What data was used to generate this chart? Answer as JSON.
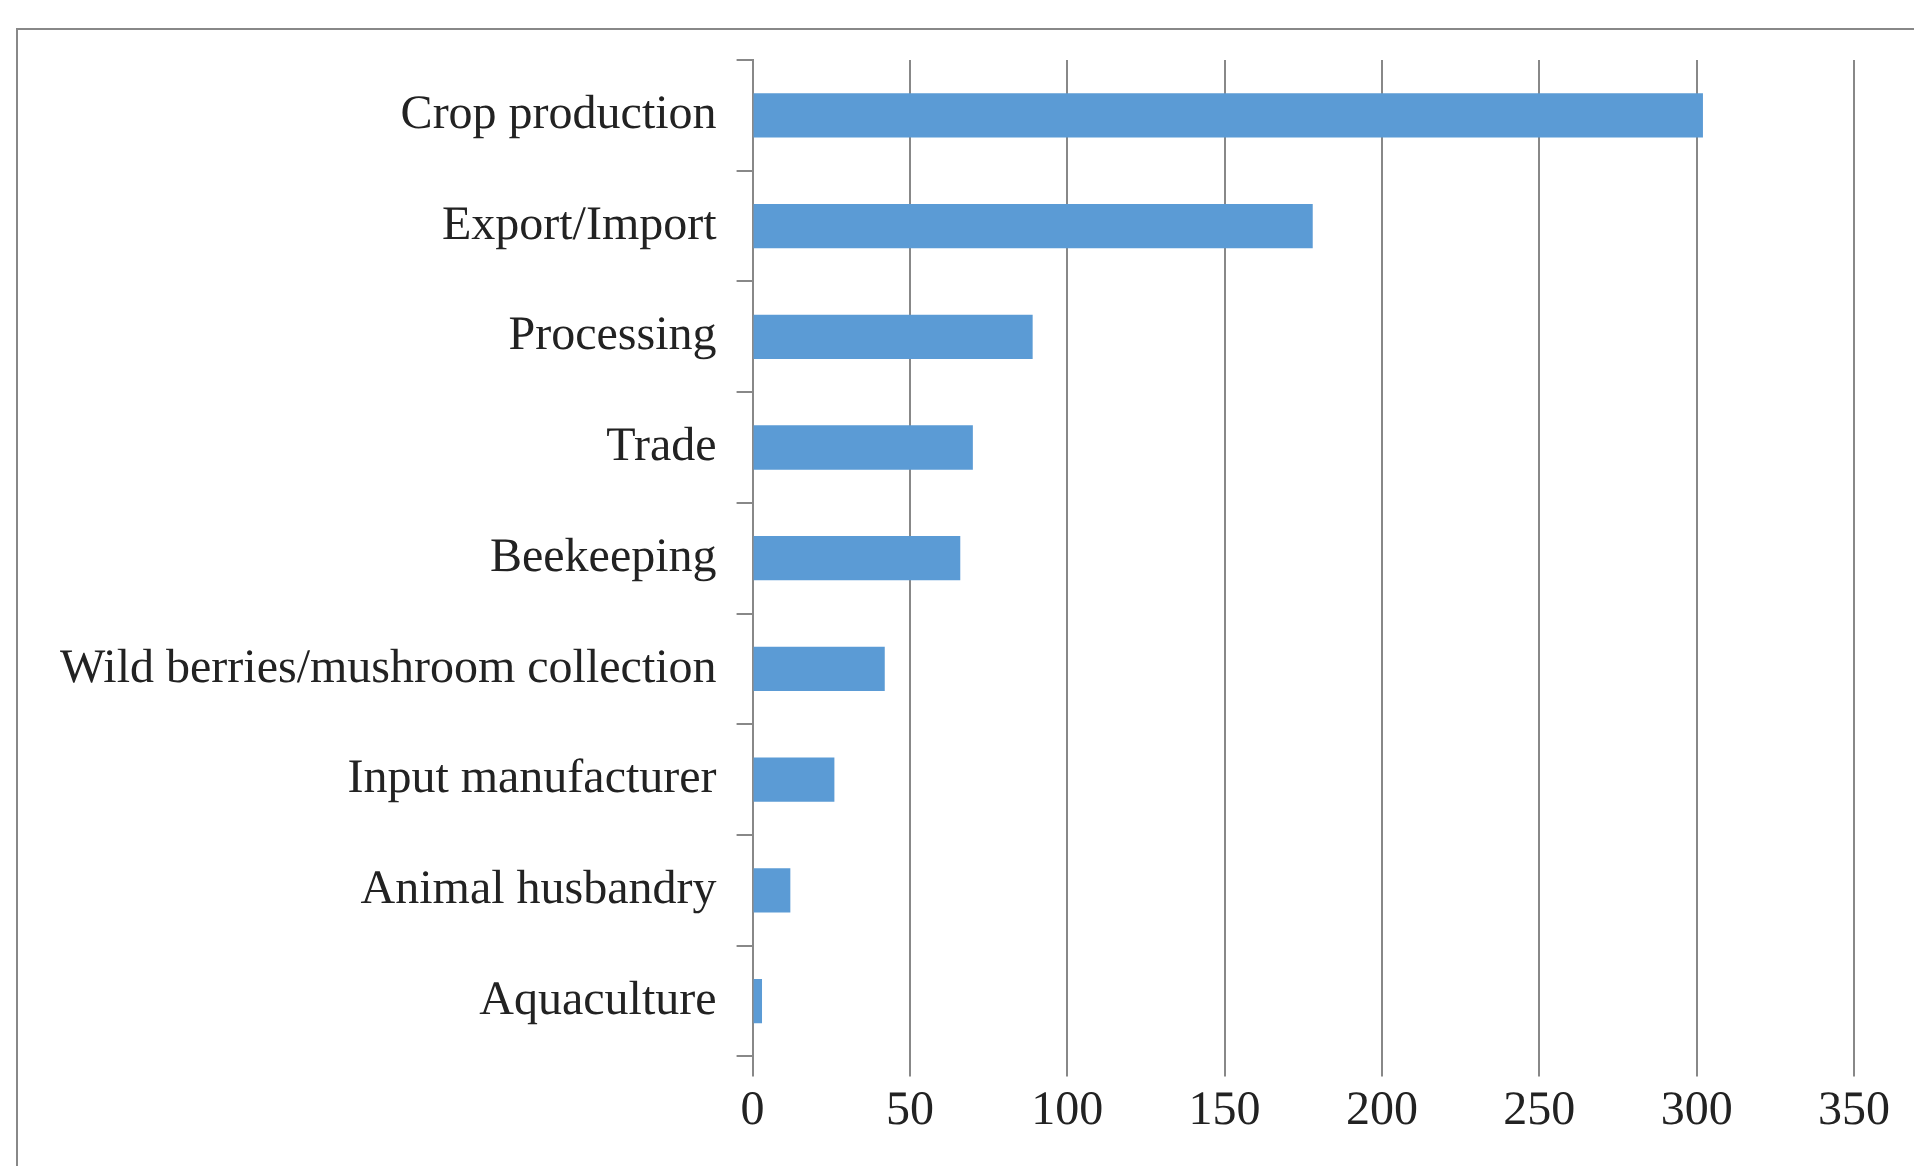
{
  "chart_data": {
    "type": "bar",
    "orientation": "horizontal",
    "categories": [
      "Crop production",
      "Export/Import",
      "Processing",
      "Trade",
      "Beekeeping",
      "Wild berries/mushroom collection",
      "Input manufacturer",
      "Animal husbandry",
      "Aquaculture"
    ],
    "values": [
      302,
      178,
      89,
      70,
      66,
      42,
      26,
      12,
      3
    ],
    "color": "#5b9bd5",
    "xlim": [
      0,
      350
    ],
    "xticks": [
      0,
      50,
      100,
      150,
      200,
      250,
      300,
      350
    ],
    "grid": "x",
    "legend": false
  }
}
